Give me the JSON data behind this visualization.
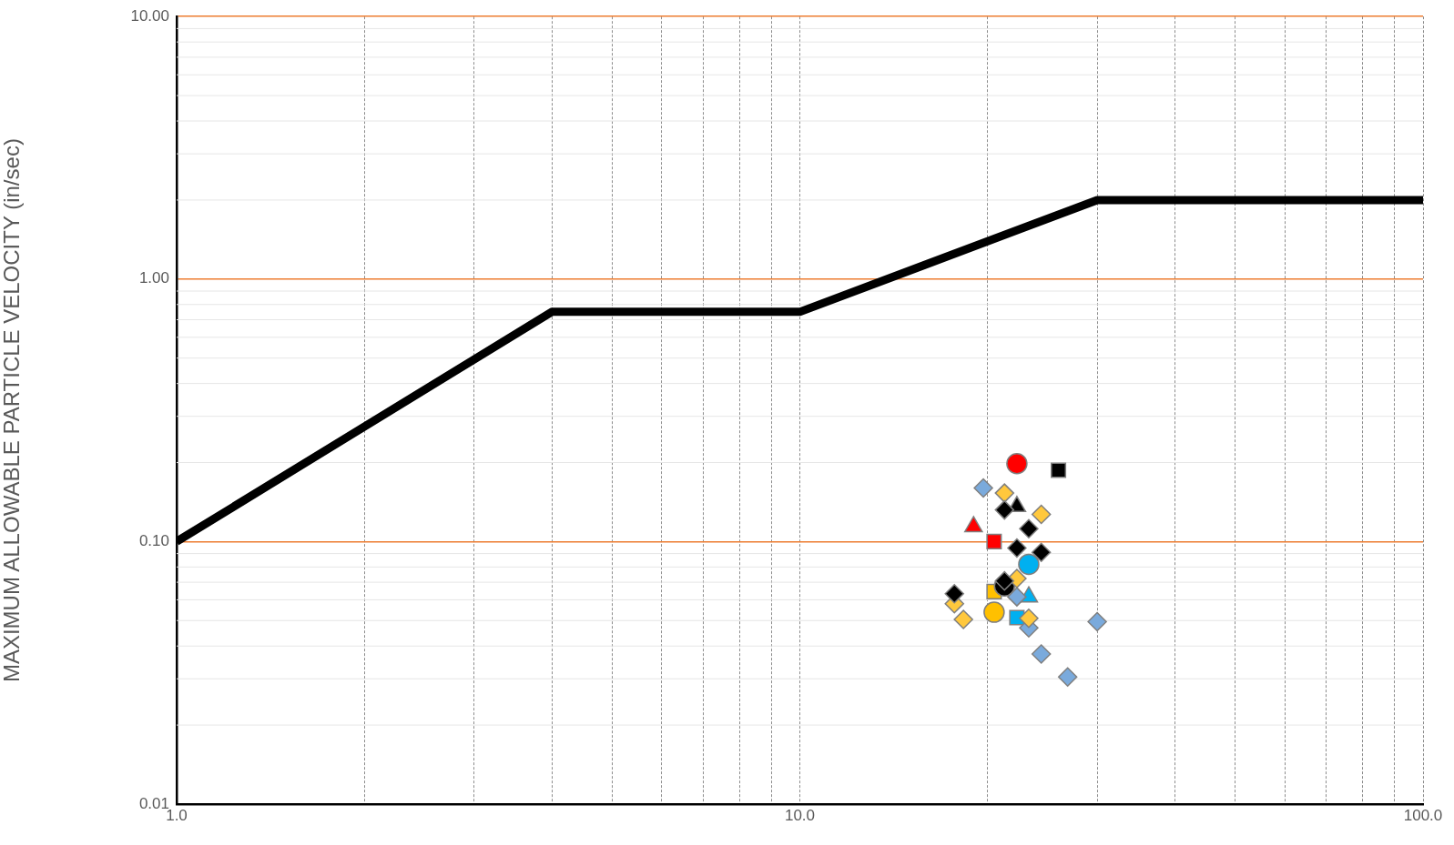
{
  "chart_data": {
    "type": "scatter",
    "ylabel": "MAXIMUM ALLOWABLE PARTICLE VELOCITY (in/sec)",
    "log": "xy",
    "grid": true,
    "legend": false,
    "xlim": [
      1,
      100
    ],
    "ylim": [
      0.01,
      10
    ],
    "xticks": [
      {
        "value": 1,
        "label": "1.0"
      },
      {
        "value": 2,
        "label": null
      },
      {
        "value": 3,
        "label": null
      },
      {
        "value": 4,
        "label": null
      },
      {
        "value": 5,
        "label": null
      },
      {
        "value": 6,
        "label": null
      },
      {
        "value": 7,
        "label": null
      },
      {
        "value": 8,
        "label": null
      },
      {
        "value": 9,
        "label": null
      },
      {
        "value": 10,
        "label": "10.0"
      },
      {
        "value": 20,
        "label": null
      },
      {
        "value": 30,
        "label": null
      },
      {
        "value": 40,
        "label": null
      },
      {
        "value": 50,
        "label": null
      },
      {
        "value": 60,
        "label": null
      },
      {
        "value": 70,
        "label": null
      },
      {
        "value": 80,
        "label": null
      },
      {
        "value": 90,
        "label": null
      },
      {
        "value": 100,
        "label": "100.0"
      }
    ],
    "yticks": [
      {
        "value": 0.01,
        "label": "0.01"
      },
      {
        "value": 0.1,
        "label": "0.10"
      },
      {
        "value": 1,
        "label": "1.00"
      },
      {
        "value": 10,
        "label": "10.00"
      }
    ],
    "series": [
      {
        "type": "line",
        "color": "#000000",
        "marker": "none",
        "line_style": "solid",
        "x": [
          1,
          4,
          10,
          30,
          100
        ],
        "values": [
          0.1,
          0.75,
          0.75,
          2,
          2
        ]
      },
      {
        "marker": "diamond",
        "color": "#000000",
        "x": [
          21.3,
          23.3,
          22.3,
          24.4,
          21.3,
          17.7
        ],
        "values": [
          0.132,
          0.112,
          0.0945,
          0.091,
          0.0708,
          0.0633
        ]
      },
      {
        "marker": "diamond",
        "color": "#ffc83d",
        "x": [
          21.3,
          24.4,
          22.3,
          17.7,
          18.3,
          23.3
        ],
        "values": [
          0.153,
          0.127,
          0.0723,
          0.058,
          0.0505,
          0.051
        ]
      },
      {
        "marker": "diamond",
        "color": "#7aaadc",
        "x": [
          19.7,
          22.3,
          23.3,
          30,
          24.4,
          26.9
        ],
        "values": [
          0.16,
          0.0616,
          0.0469,
          0.0495,
          0.0373,
          0.0305
        ]
      },
      {
        "marker": "circle",
        "color": "#ff0000",
        "x": [
          22.3
        ],
        "values": [
          0.198
        ]
      },
      {
        "marker": "square",
        "color": "#000000",
        "x": [
          26
        ],
        "values": [
          0.187
        ]
      },
      {
        "marker": "triangle",
        "color": "#000000",
        "x": [
          22.3
        ],
        "values": [
          0.136
        ]
      },
      {
        "marker": "triangle",
        "color": "#ff0000",
        "x": [
          19
        ],
        "values": [
          0.114
        ]
      },
      {
        "marker": "square",
        "color": "#ff0000",
        "x": [
          20.5
        ],
        "values": [
          0.1
        ]
      },
      {
        "marker": "circle",
        "color": "#00b0f0",
        "x": [
          23.3
        ],
        "values": [
          0.0819
        ]
      },
      {
        "marker": "circle",
        "color": "#000000",
        "x": [
          21.3
        ],
        "values": [
          0.0677
        ]
      },
      {
        "marker": "square",
        "color": "#ffc000",
        "x": [
          20.5
        ],
        "values": [
          0.0645
        ]
      },
      {
        "marker": "triangle",
        "color": "#00b0f0",
        "x": [
          23.3
        ],
        "values": [
          0.0616
        ]
      },
      {
        "marker": "circle",
        "color": "#ffc000",
        "x": [
          20.5
        ],
        "values": [
          0.0538
        ]
      },
      {
        "marker": "square",
        "color": "#00b0f0",
        "x": [
          22.3
        ],
        "values": [
          0.0513
        ]
      }
    ]
  }
}
